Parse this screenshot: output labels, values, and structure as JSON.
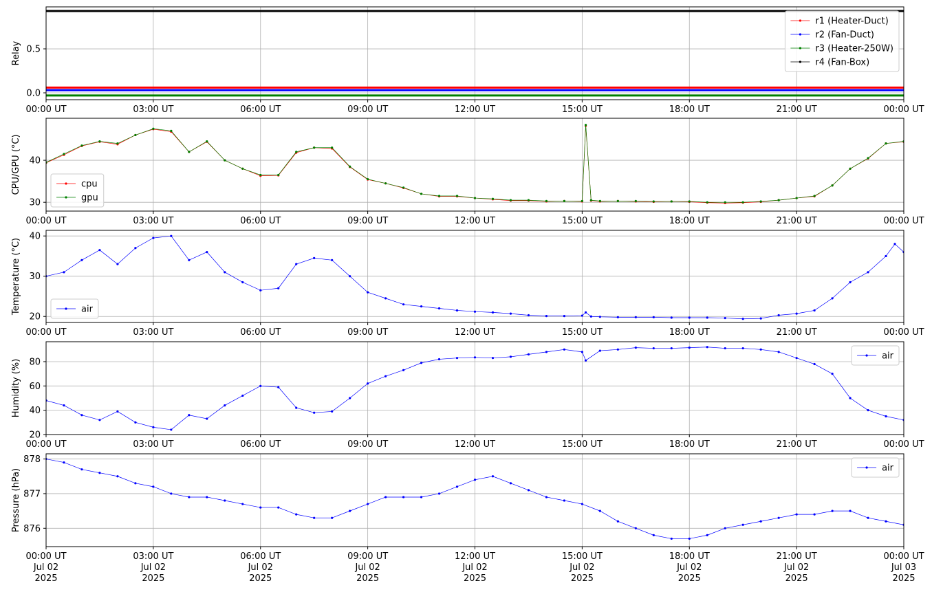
{
  "chart_data": [
    {
      "type": "line",
      "ylabel": "Relay",
      "legend": "upper right",
      "grid": true,
      "line_width": 3,
      "xlim": [
        0,
        24
      ],
      "ylim": [
        -0.078,
        0.977
      ],
      "xticks": [
        {
          "value": 0,
          "label": "00:00 UT"
        },
        {
          "value": 3,
          "label": "03:00 UT"
        },
        {
          "value": 6,
          "label": "06:00 UT"
        },
        {
          "value": 9,
          "label": "09:00 UT"
        },
        {
          "value": 12,
          "label": "12:00 UT"
        },
        {
          "value": 15,
          "label": "15:00 UT"
        },
        {
          "value": 18,
          "label": "18:00 UT"
        },
        {
          "value": 21,
          "label": "21:00 UT"
        },
        {
          "value": 24,
          "label": "00:00 UT"
        }
      ],
      "yticks": [
        {
          "value": 0,
          "label": "0.0"
        },
        0.5
      ],
      "x": [
        0,
        24
      ],
      "series": [
        {
          "name": "r1 (Heater-Duct)",
          "color": "#ff0000",
          "values": [
            0.06,
            0.06
          ]
        },
        {
          "name": "r2 (Fan-Duct)",
          "color": "#0000ff",
          "values": [
            0.03,
            0.03
          ]
        },
        {
          "name": "r3 (Heater-250W)",
          "color": "#008000",
          "values": [
            -0.03,
            -0.03
          ]
        },
        {
          "name": "r4 (Fan-Box)",
          "color": "#000000",
          "values": [
            0.93,
            0.93
          ]
        }
      ]
    },
    {
      "type": "line",
      "ylabel": "CPU/GPU (°C)",
      "legend": "lower left",
      "grid": true,
      "xlim": [
        0,
        24
      ],
      "ylim": [
        27.9,
        50
      ],
      "xticks": [
        {
          "value": 0,
          "label": "00:00 UT"
        },
        {
          "value": 3,
          "label": "03:00 UT"
        },
        {
          "value": 6,
          "label": "06:00 UT"
        },
        {
          "value": 9,
          "label": "09:00 UT"
        },
        {
          "value": 12,
          "label": "12:00 UT"
        },
        {
          "value": 15,
          "label": "15:00 UT"
        },
        {
          "value": 18,
          "label": "18:00 UT"
        },
        {
          "value": 21,
          "label": "21:00 UT"
        },
        {
          "value": 24,
          "label": "00:00 UT"
        }
      ],
      "yticks": [
        30,
        40
      ],
      "x": [
        0,
        0.5,
        1,
        1.5,
        2,
        2.5,
        3,
        3.5,
        4,
        4.5,
        5,
        5.5,
        6,
        6.5,
        7,
        7.5,
        8,
        8.5,
        9,
        9.5,
        10,
        10.5,
        11,
        11.5,
        12,
        12.5,
        13,
        13.5,
        14,
        14.5,
        15,
        15.1,
        15.25,
        15.5,
        16,
        16.5,
        17,
        17.5,
        18,
        18.5,
        19,
        19.5,
        20,
        20.5,
        21,
        21.5,
        22,
        22.5,
        23,
        23.5,
        24
      ],
      "series": [
        {
          "name": "cpu",
          "color": "#ff0000",
          "values": [
            39.4,
            41.3,
            43.4,
            44.4,
            43.8,
            46,
            47.4,
            46.8,
            42,
            44.4,
            40,
            38,
            36.3,
            36.4,
            41.8,
            43,
            42.8,
            38.4,
            35.4,
            34.5,
            33.4,
            32,
            31.4,
            31.4,
            31,
            30.7,
            30.4,
            30.4,
            30.2,
            30.3,
            30.2,
            48.2,
            30.4,
            30.2,
            30.3,
            30.2,
            30.1,
            30.2,
            30.1,
            29.9,
            29.8,
            29.9,
            30.1,
            30.5,
            31,
            31.4,
            34,
            38,
            40.4,
            44,
            44.4
          ]
        },
        {
          "name": "gpu",
          "color": "#008000",
          "values": [
            39.5,
            41.5,
            43.5,
            44.5,
            44,
            46,
            47.5,
            47,
            42,
            44.5,
            40,
            38,
            36.5,
            36.5,
            42,
            43,
            43,
            38.5,
            35.5,
            34.5,
            33.5,
            32,
            31.5,
            31.5,
            31,
            30.8,
            30.5,
            30.5,
            30.3,
            30.3,
            30.3,
            48.4,
            30.5,
            30.3,
            30.3,
            30.3,
            30.2,
            30.2,
            30.2,
            30,
            30,
            30,
            30.2,
            30.5,
            31,
            31.5,
            34,
            38,
            40.5,
            44,
            44.5
          ]
        }
      ]
    },
    {
      "type": "line",
      "ylabel": "Temperature (°C)",
      "legend": "lower left",
      "grid": true,
      "xlim": [
        0,
        24
      ],
      "ylim": [
        18.5,
        41.4
      ],
      "xticks": [
        {
          "value": 0,
          "label": "00:00 UT"
        },
        {
          "value": 3,
          "label": "03:00 UT"
        },
        {
          "value": 6,
          "label": "06:00 UT"
        },
        {
          "value": 9,
          "label": "09:00 UT"
        },
        {
          "value": 12,
          "label": "12:00 UT"
        },
        {
          "value": 15,
          "label": "15:00 UT"
        },
        {
          "value": 18,
          "label": "18:00 UT"
        },
        {
          "value": 21,
          "label": "21:00 UT"
        },
        {
          "value": 24,
          "label": "00:00 UT"
        }
      ],
      "yticks": [
        20,
        30,
        40
      ],
      "x": [
        0,
        0.5,
        1,
        1.5,
        2,
        2.5,
        3,
        3.5,
        4,
        4.5,
        5,
        5.5,
        6,
        6.5,
        7,
        7.5,
        8,
        8.5,
        9,
        9.5,
        10,
        10.5,
        11,
        11.5,
        12,
        12.5,
        13,
        13.5,
        14,
        14.5,
        15,
        15.1,
        15.25,
        15.5,
        16,
        16.5,
        17,
        17.5,
        18,
        18.5,
        19,
        19.5,
        20,
        20.5,
        21,
        21.5,
        22,
        22.5,
        23,
        23.5,
        23.75,
        24
      ],
      "series": [
        {
          "name": "air",
          "color": "#0000ff",
          "values": [
            30,
            31,
            34,
            36.5,
            33,
            37,
            39.5,
            40,
            34,
            36,
            31,
            28.5,
            26.5,
            27,
            33,
            34.5,
            34,
            30,
            26,
            24.5,
            23,
            22.5,
            22,
            21.5,
            21.2,
            21,
            20.7,
            20.3,
            20.1,
            20.1,
            20.2,
            21,
            20,
            19.9,
            19.8,
            19.8,
            19.8,
            19.7,
            19.7,
            19.7,
            19.6,
            19.4,
            19.5,
            20.3,
            20.7,
            21.5,
            24.5,
            28.5,
            31,
            35,
            38,
            36
          ]
        }
      ]
    },
    {
      "type": "line",
      "ylabel": "Humidity (%)",
      "legend": "upper right",
      "grid": true,
      "xlim": [
        0,
        24
      ],
      "ylim": [
        20,
        96.4
      ],
      "xticks": [
        {
          "value": 0,
          "label": "00:00 UT"
        },
        {
          "value": 3,
          "label": "03:00 UT"
        },
        {
          "value": 6,
          "label": "06:00 UT"
        },
        {
          "value": 9,
          "label": "09:00 UT"
        },
        {
          "value": 12,
          "label": "12:00 UT"
        },
        {
          "value": 15,
          "label": "15:00 UT"
        },
        {
          "value": 18,
          "label": "18:00 UT"
        },
        {
          "value": 21,
          "label": "21:00 UT"
        },
        {
          "value": 24,
          "label": "00:00 UT"
        }
      ],
      "yticks": [
        20,
        40,
        60,
        80
      ],
      "x": [
        0,
        0.5,
        1,
        1.5,
        2,
        2.5,
        3,
        3.5,
        4,
        4.5,
        5,
        5.5,
        6,
        6.5,
        7,
        7.5,
        8,
        8.5,
        9,
        9.5,
        10,
        10.5,
        11,
        11.5,
        12,
        12.5,
        13,
        13.5,
        14,
        14.5,
        15,
        15.1,
        15.5,
        16,
        16.5,
        17,
        17.5,
        18,
        18.5,
        19,
        19.5,
        20,
        20.5,
        21,
        21.5,
        22,
        22.5,
        23,
        23.5,
        24
      ],
      "series": [
        {
          "name": "air",
          "color": "#0000ff",
          "values": [
            48,
            44,
            36,
            32,
            39,
            30,
            26,
            24,
            36,
            33,
            44,
            52,
            60,
            59,
            42,
            38,
            39,
            50,
            62,
            68,
            73,
            79,
            82,
            83,
            83.5,
            83,
            84,
            86,
            88,
            90,
            88,
            81,
            89,
            90,
            91.5,
            91,
            91,
            91.5,
            92,
            91,
            91,
            90,
            88,
            83,
            78,
            70,
            50,
            40,
            35,
            32
          ]
        }
      ]
    },
    {
      "type": "line",
      "ylabel": "Pressure (hPa)",
      "legend": "upper right",
      "grid": true,
      "xlim": [
        0,
        24
      ],
      "ylim": [
        875.47,
        878.15
      ],
      "xticks": [
        {
          "value": 0,
          "label": "00:00 UT\nJul 02\n2025"
        },
        {
          "value": 3,
          "label": "03:00 UT\nJul 02\n2025"
        },
        {
          "value": 6,
          "label": "06:00 UT\nJul 02\n2025"
        },
        {
          "value": 9,
          "label": "09:00 UT\nJul 02\n2025"
        },
        {
          "value": 12,
          "label": "12:00 UT\nJul 02\n2025"
        },
        {
          "value": 15,
          "label": "15:00 UT\nJul 02\n2025"
        },
        {
          "value": 18,
          "label": "18:00 UT\nJul 02\n2025"
        },
        {
          "value": 21,
          "label": "21:00 UT\nJul 02\n2025"
        },
        {
          "value": 24,
          "label": "00:00 UT\nJul 03\n2025"
        }
      ],
      "yticks": [
        876,
        877,
        878
      ],
      "x": [
        0,
        0.5,
        1,
        1.5,
        2,
        2.5,
        3,
        3.5,
        4,
        4.5,
        5,
        5.5,
        6,
        6.5,
        7,
        7.5,
        8,
        8.5,
        9,
        9.5,
        10,
        10.5,
        11,
        11.5,
        12,
        12.5,
        13,
        13.5,
        14,
        14.5,
        15,
        15.5,
        16,
        16.5,
        17,
        17.5,
        18,
        18.5,
        19,
        19.5,
        20,
        20.5,
        21,
        21.5,
        22,
        22.5,
        23,
        23.5,
        24
      ],
      "series": [
        {
          "name": "air",
          "color": "#0000ff",
          "values": [
            878,
            877.9,
            877.7,
            877.6,
            877.5,
            877.3,
            877.2,
            877,
            876.9,
            876.9,
            876.8,
            876.7,
            876.6,
            876.6,
            876.4,
            876.3,
            876.3,
            876.5,
            876.7,
            876.9,
            876.9,
            876.9,
            877,
            877.2,
            877.4,
            877.5,
            877.3,
            877.1,
            876.9,
            876.8,
            876.7,
            876.5,
            876.2,
            876,
            875.8,
            875.7,
            875.7,
            875.8,
            876,
            876.1,
            876.2,
            876.3,
            876.4,
            876.4,
            876.5,
            876.5,
            876.3,
            876.2,
            876.1
          ]
        }
      ]
    }
  ]
}
